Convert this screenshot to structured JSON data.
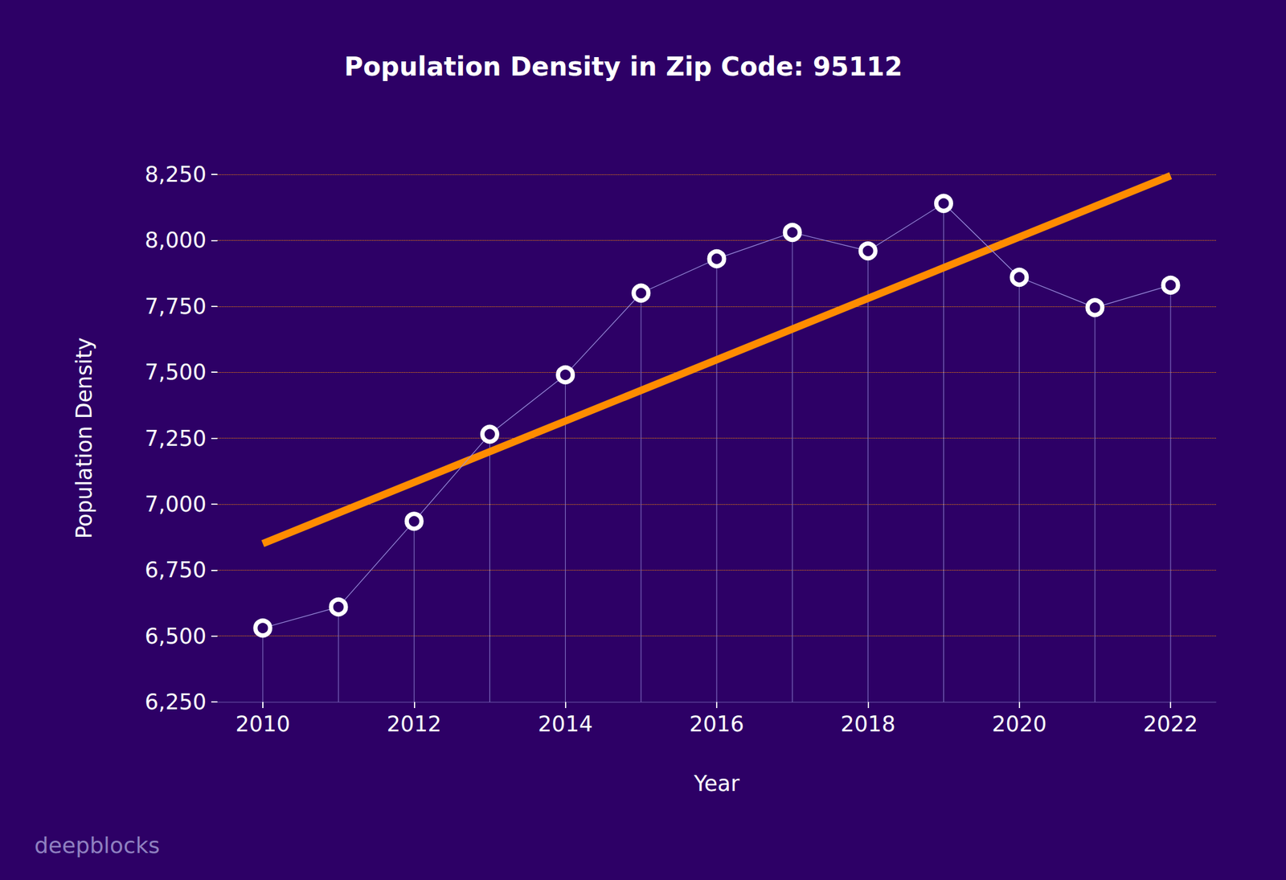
{
  "chart_data": {
    "type": "line",
    "title": "Population Density in Zip Code: 95112",
    "x_label": "Year",
    "y_label": "Population Density",
    "source": "deepblocks",
    "x": [
      2010,
      2011,
      2012,
      2013,
      2014,
      2015,
      2016,
      2017,
      2018,
      2019,
      2020,
      2021,
      2022
    ],
    "series": [
      {
        "type": "stem",
        "color": "#ffffff",
        "marker": "circle",
        "line_style": "solid",
        "values": [
          6530,
          6610,
          6935,
          7265,
          7490,
          7800,
          7930,
          8030,
          7960,
          8140,
          7860,
          7745,
          7830
        ]
      },
      {
        "type": "line",
        "color": "#ff8c00",
        "line_style": "solid",
        "x": [
          2010,
          2022
        ],
        "values": [
          6850,
          8245
        ]
      }
    ],
    "xlim": [
      2009.4,
      2022.6
    ],
    "xticks": [
      2010,
      2012,
      2014,
      2016,
      2018,
      2020,
      2022
    ],
    "ylim": [
      6250,
      8250
    ],
    "yticks": [
      {
        "value": 6250,
        "label": "6,250"
      },
      {
        "value": 6500,
        "label": "6,500"
      },
      {
        "value": 6750,
        "label": "6,750"
      },
      {
        "value": 7000,
        "label": "7,000"
      },
      {
        "value": 7250,
        "label": "7,250"
      },
      {
        "value": 7500,
        "label": "7,500"
      },
      {
        "value": 7750,
        "label": "7,750"
      },
      {
        "value": 8000,
        "label": "8,000"
      },
      {
        "value": 8250,
        "label": "8,250"
      }
    ],
    "grid": true
  }
}
